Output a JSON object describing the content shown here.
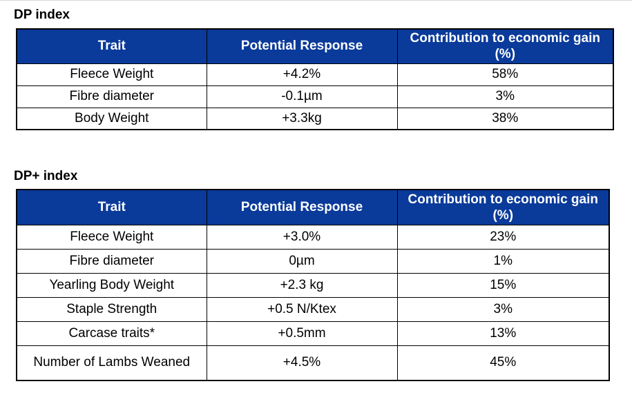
{
  "sections": [
    {
      "title": "DP index",
      "headers": [
        "Trait",
        "Potential Response",
        "Contribution to economic gain (%)"
      ],
      "rows": [
        [
          "Fleece Weight",
          "+4.2%",
          "58%"
        ],
        [
          "Fibre diameter",
          "-0.1µm",
          "3%"
        ],
        [
          "Body Weight",
          "+3.3kg",
          "38%"
        ]
      ]
    },
    {
      "title": "DP+ index",
      "headers": [
        "Trait",
        "Potential Response",
        "Contribution to economic gain (%)"
      ],
      "rows": [
        [
          "Fleece Weight",
          "+3.0%",
          "23%"
        ],
        [
          "Fibre diameter",
          "0µm",
          "1%"
        ],
        [
          "Yearling Body Weight",
          "+2.3 kg",
          "15%"
        ],
        [
          "Staple Strength",
          "+0.5 N/Ktex",
          "3%"
        ],
        [
          "Carcase traits*",
          "+0.5mm",
          "13%"
        ],
        [
          "Number of Lambs Weaned",
          "+4.5%",
          "45%"
        ]
      ]
    }
  ],
  "colors": {
    "header_bg": "#0a3a9a",
    "header_text": "#ffffff",
    "border": "#000000"
  }
}
